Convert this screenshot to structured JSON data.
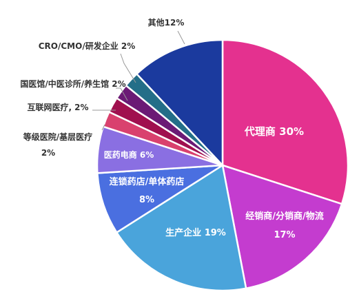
{
  "chart_data": {
    "type": "pie",
    "title": "",
    "legend": "none",
    "slices": [
      {
        "label": "代理商",
        "value": 30,
        "color": "#e4318f",
        "display": [
          "代理商 30%"
        ]
      },
      {
        "label": "经销商/分销商/物流",
        "value": 17,
        "color": "#c43ccf",
        "display": [
          "经销商/分销商/物流",
          "17%"
        ]
      },
      {
        "label": "生产企业",
        "value": 19,
        "color": "#4aa4db",
        "display": [
          "生产企业 19%"
        ]
      },
      {
        "label": "连锁药店/单体药店",
        "value": 8,
        "color": "#4a6fe0",
        "display": [
          "连锁药店/单体药店",
          "8%"
        ]
      },
      {
        "label": "医药电商",
        "value": 6,
        "color": "#8a6fe2",
        "display": [
          "医药电商 6%"
        ]
      },
      {
        "label": "等级医院/基层医疗",
        "value": 2,
        "color": "#d9416e",
        "display": [
          "等级医院/基层医疗",
          "2%"
        ]
      },
      {
        "label": "互联网医疗",
        "value": 2,
        "color": "#a0104f",
        "display": [
          "互联网医疗, 2%"
        ]
      },
      {
        "label": "国医馆/中医诊所/养生馆",
        "value": 2,
        "color": "#6b1a75",
        "display": [
          "国医馆/中医诊所/养生馆 2%"
        ]
      },
      {
        "label": "CRO/CMO/研发企业",
        "value": 2,
        "color": "#246e88",
        "display": [
          "CRO/CMO/研发企业 2%"
        ]
      },
      {
        "label": "其他",
        "value": 12,
        "color": "#1b3a9e",
        "display": [
          "其他12%"
        ]
      }
    ]
  }
}
